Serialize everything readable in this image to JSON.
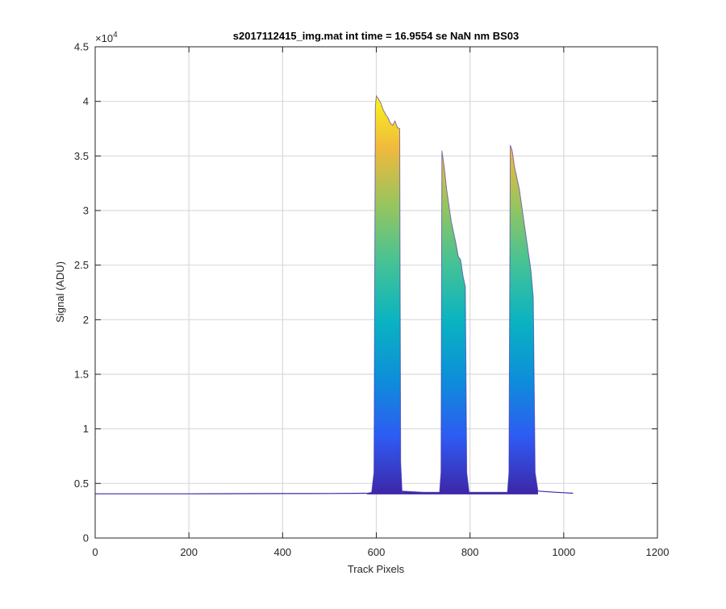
{
  "chart_data": {
    "type": "area",
    "title": "s2017112415_img.mat int time = 16.9554 se  NaN nm BS03",
    "xlabel": "Track Pixels",
    "ylabel": "Signal (ADU)",
    "xlim": [
      0,
      1200
    ],
    "ylim": [
      0,
      4.5
    ],
    "y_exponent_label": "×10",
    "y_exponent": "4",
    "y_multiplier": 10000,
    "x_ticks": [
      0,
      200,
      400,
      600,
      800,
      1000,
      1200
    ],
    "x_tick_labels": [
      "0",
      "200",
      "400",
      "600",
      "800",
      "1000",
      "1200"
    ],
    "y_ticks": [
      0,
      0.5,
      1,
      1.5,
      2,
      2.5,
      3,
      3.5,
      4,
      4.5
    ],
    "y_tick_labels": [
      "0",
      "0.5",
      "1",
      "1.5",
      "2",
      "2.5",
      "3",
      "3.5",
      "4",
      "4.5"
    ],
    "grid": true,
    "colormap": [
      "#3e26a8",
      "#2e5bf3",
      "#0d8fd9",
      "#0ab3c1",
      "#44c296",
      "#96c55f",
      "#f0b93c",
      "#f9fb15"
    ],
    "baseline": {
      "x": [
        0,
        200,
        400,
        500,
        580
      ],
      "y": [
        0.405,
        0.405,
        0.407,
        0.408,
        0.41
      ]
    },
    "series": [
      {
        "x": [
          580,
          590,
          595,
          598,
          600,
          605,
          610,
          615,
          620,
          625,
          630,
          635,
          640,
          645,
          650,
          652,
          655
        ],
        "y": [
          0.41,
          0.42,
          0.6,
          3.95,
          4.05,
          4.02,
          3.98,
          3.92,
          3.88,
          3.85,
          3.8,
          3.78,
          3.82,
          3.76,
          3.75,
          0.7,
          0.43
        ]
      },
      {
        "x": [
          655,
          700,
          735,
          738,
          740,
          745,
          750,
          755,
          760,
          765,
          770,
          775,
          780,
          785,
          790,
          793,
          798
        ],
        "y": [
          0.43,
          0.42,
          0.42,
          0.6,
          3.55,
          3.4,
          3.2,
          3.05,
          2.9,
          2.8,
          2.7,
          2.58,
          2.55,
          2.4,
          2.3,
          0.6,
          0.42
        ]
      },
      {
        "x": [
          798,
          850,
          880,
          883,
          886,
          890,
          895,
          900,
          905,
          910,
          915,
          920,
          925,
          930,
          935,
          939,
          945
        ],
        "y": [
          0.42,
          0.42,
          0.42,
          0.6,
          3.6,
          3.55,
          3.4,
          3.3,
          3.2,
          3.05,
          2.9,
          2.75,
          2.6,
          2.45,
          2.2,
          0.6,
          0.43
        ]
      }
    ],
    "tail": {
      "x": [
        945,
        980,
        1000,
        1020
      ],
      "y": [
        0.43,
        0.42,
        0.415,
        0.41
      ]
    }
  }
}
